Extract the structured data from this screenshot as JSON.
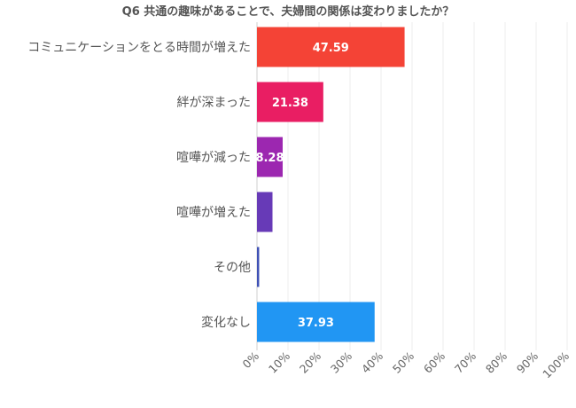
{
  "chart_data": {
    "type": "bar",
    "orientation": "horizontal",
    "title": "Q6 共通の趣味があることで、夫婦間の関係は変わりましたか？",
    "categories": [
      "コミュニケーションをとる時間が増えた",
      "絆が深まった",
      "喧嘩が減った",
      "喧嘩が増えた",
      "その他",
      "変化なし"
    ],
    "values": [
      47.59,
      21.38,
      8.28,
      5.0,
      0.7,
      37.93
    ],
    "value_labels": [
      "47.59",
      "21.38",
      "8.28",
      "",
      "",
      "37.93"
    ],
    "colors": [
      "#f44336",
      "#e91e63",
      "#9c27b0",
      "#673ab7",
      "#3f51b5",
      "#2196f3"
    ],
    "xlim": [
      0,
      100
    ],
    "x_ticks": [
      "0%",
      "10%",
      "20%",
      "30%",
      "40%",
      "50%",
      "60%",
      "70%",
      "80%",
      "90%",
      "100%"
    ],
    "grid": true,
    "legend": "none"
  }
}
